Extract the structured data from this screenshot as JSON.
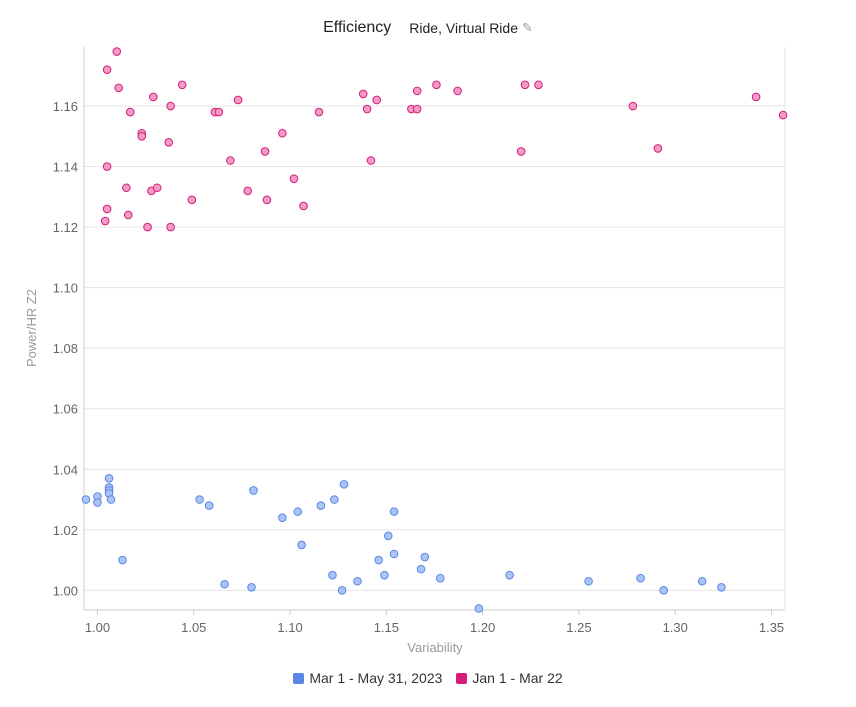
{
  "header": {
    "title": "Efficiency",
    "filter_label": "Ride, Virtual Ride",
    "edit_icon": "pencil-icon"
  },
  "colors": {
    "series1_fill": "#a9c4f5",
    "series1_stroke": "#5b86e5",
    "series2_fill": "#f09cc6",
    "series2_stroke": "#d81b7a",
    "grid": "#e6e6e6"
  },
  "chart_data": {
    "type": "scatter",
    "xlabel": "Variability",
    "ylabel": "Power/HR Z2",
    "xlim": [
      0.993,
      1.357
    ],
    "ylim": [
      0.9935,
      1.1795
    ],
    "xticks": [
      "1.00",
      "1.05",
      "1.10",
      "1.15",
      "1.20",
      "1.25",
      "1.30",
      "1.35"
    ],
    "yticks": [
      "1.00",
      "1.02",
      "1.04",
      "1.06",
      "1.08",
      "1.10",
      "1.12",
      "1.14",
      "1.16"
    ],
    "grid": true,
    "legend_position": "bottom",
    "series": [
      {
        "name": "Mar 1 - May 31, 2023",
        "points": [
          [
            0.994,
            1.03
          ],
          [
            1.0,
            1.031
          ],
          [
            1.0,
            1.029
          ],
          [
            1.006,
            1.037
          ],
          [
            1.006,
            1.034
          ],
          [
            1.006,
            1.033
          ],
          [
            1.006,
            1.032
          ],
          [
            1.007,
            1.03
          ],
          [
            1.013,
            1.01
          ],
          [
            1.053,
            1.03
          ],
          [
            1.058,
            1.028
          ],
          [
            1.066,
            1.002
          ],
          [
            1.08,
            1.001
          ],
          [
            1.081,
            1.033
          ],
          [
            1.096,
            1.024
          ],
          [
            1.104,
            1.026
          ],
          [
            1.106,
            1.015
          ],
          [
            1.116,
            1.028
          ],
          [
            1.122,
            1.005
          ],
          [
            1.123,
            1.03
          ],
          [
            1.127,
            1.0
          ],
          [
            1.128,
            1.035
          ],
          [
            1.135,
            1.003
          ],
          [
            1.146,
            1.01
          ],
          [
            1.149,
            1.005
          ],
          [
            1.151,
            1.018
          ],
          [
            1.154,
            1.012
          ],
          [
            1.154,
            1.026
          ],
          [
            1.168,
            1.007
          ],
          [
            1.17,
            1.011
          ],
          [
            1.178,
            1.004
          ],
          [
            1.198,
            0.994
          ],
          [
            1.214,
            1.005
          ],
          [
            1.255,
            1.003
          ],
          [
            1.282,
            1.004
          ],
          [
            1.294,
            1.0
          ],
          [
            1.314,
            1.003
          ],
          [
            1.324,
            1.001
          ]
        ]
      },
      {
        "name": "Jan 1 - Mar 22",
        "points": [
          [
            1.005,
            1.172
          ],
          [
            1.01,
            1.178
          ],
          [
            1.011,
            1.166
          ],
          [
            1.017,
            1.158
          ],
          [
            1.023,
            1.151
          ],
          [
            1.023,
            1.15
          ],
          [
            1.029,
            1.163
          ],
          [
            1.037,
            1.148
          ],
          [
            1.038,
            1.16
          ],
          [
            1.044,
            1.167
          ],
          [
            1.061,
            1.158
          ],
          [
            1.063,
            1.158
          ],
          [
            1.069,
            1.142
          ],
          [
            1.073,
            1.162
          ],
          [
            1.078,
            1.132
          ],
          [
            1.087,
            1.145
          ],
          [
            1.088,
            1.129
          ],
          [
            1.096,
            1.151
          ],
          [
            1.102,
            1.136
          ],
          [
            1.107,
            1.127
          ],
          [
            1.115,
            1.158
          ],
          [
            1.138,
            1.164
          ],
          [
            1.14,
            1.159
          ],
          [
            1.142,
            1.142
          ],
          [
            1.145,
            1.162
          ],
          [
            1.163,
            1.159
          ],
          [
            1.166,
            1.165
          ],
          [
            1.166,
            1.159
          ],
          [
            1.176,
            1.167
          ],
          [
            1.187,
            1.165
          ],
          [
            1.22,
            1.145
          ],
          [
            1.222,
            1.167
          ],
          [
            1.229,
            1.167
          ],
          [
            1.278,
            1.16
          ],
          [
            1.291,
            1.146
          ],
          [
            1.342,
            1.163
          ],
          [
            1.356,
            1.157
          ],
          [
            1.005,
            1.14
          ],
          [
            1.005,
            1.126
          ],
          [
            1.004,
            1.122
          ],
          [
            1.015,
            1.133
          ],
          [
            1.016,
            1.124
          ],
          [
            1.026,
            1.12
          ],
          [
            1.028,
            1.132
          ],
          [
            1.031,
            1.133
          ],
          [
            1.038,
            1.12
          ],
          [
            1.049,
            1.129
          ]
        ]
      }
    ]
  }
}
